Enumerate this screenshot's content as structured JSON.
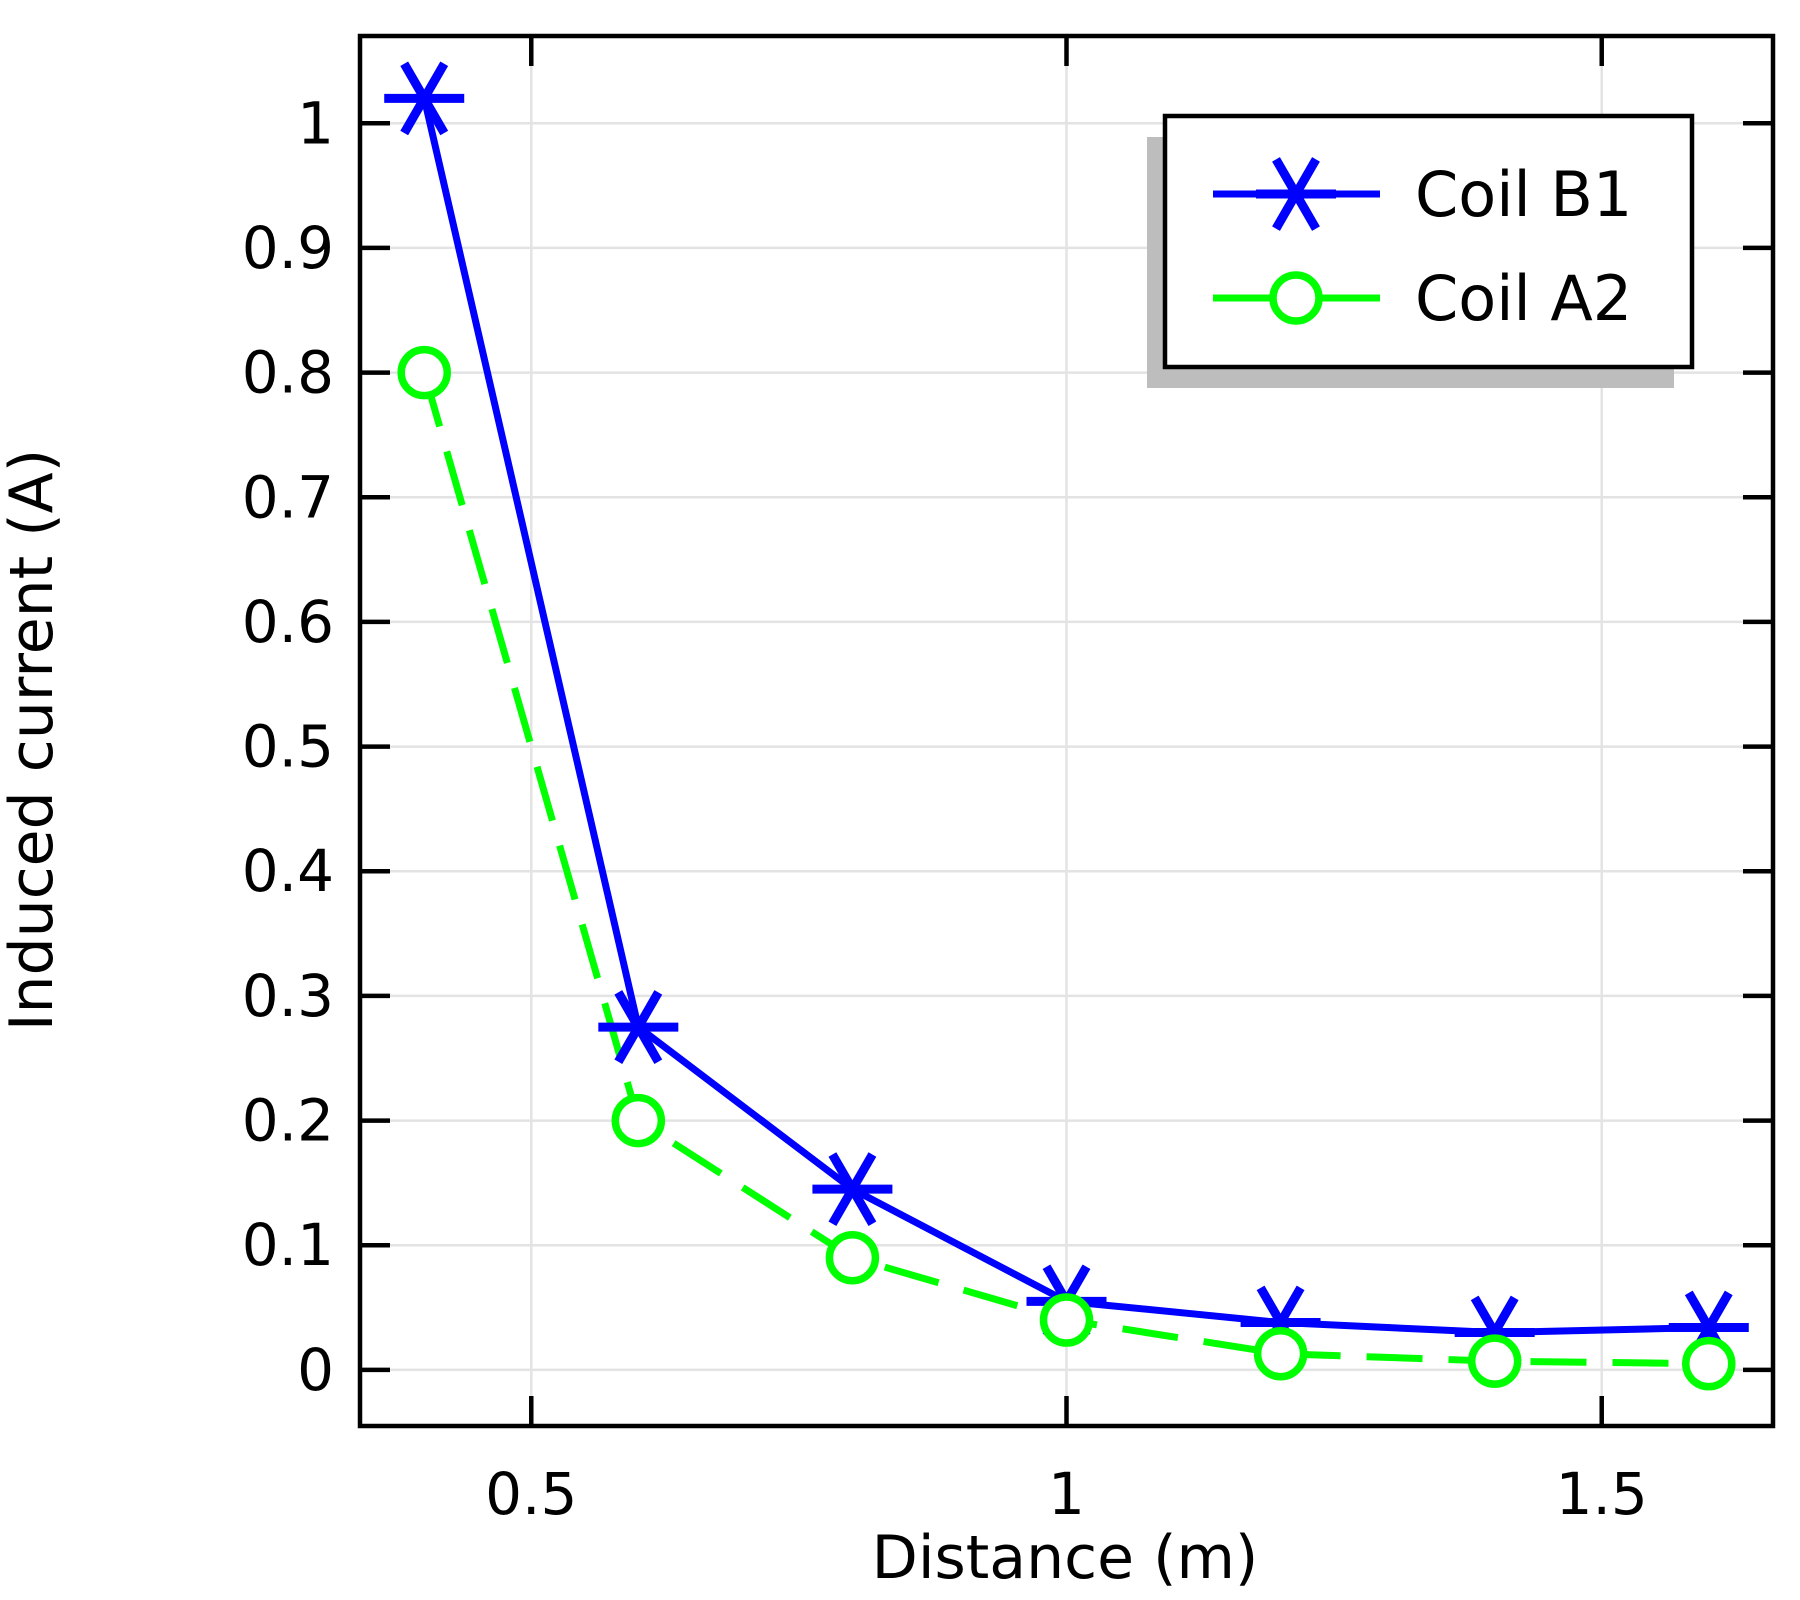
{
  "chart_data": {
    "type": "line",
    "title": "",
    "xlabel": "Distance (m)",
    "ylabel": "Induced current (A)",
    "xlim": [
      0.34,
      1.66
    ],
    "ylim": [
      -0.045,
      1.07
    ],
    "xticks": [
      0.5,
      1,
      1.5
    ],
    "xtick_labels": [
      "0.5",
      "1",
      "1.5"
    ],
    "yticks": [
      0,
      0.1,
      0.2,
      0.3,
      0.4,
      0.5,
      0.6,
      0.7,
      0.8,
      0.9,
      1
    ],
    "ytick_labels": [
      "0",
      "0.1",
      "0.2",
      "0.3",
      "0.4",
      "0.5",
      "0.6",
      "0.7",
      "0.8",
      "0.9",
      "1"
    ],
    "grid": true,
    "legend_position": "top-right",
    "x": [
      0.4,
      0.6,
      0.8,
      1.0,
      1.2,
      1.4,
      1.6
    ],
    "series": [
      {
        "name": "Coil B1",
        "values": [
          1.02,
          0.275,
          0.145,
          0.055,
          0.038,
          0.03,
          0.034
        ],
        "color": "#0000ff",
        "marker": "asterisk",
        "line_style": "solid"
      },
      {
        "name": "Coil A2",
        "values": [
          0.8,
          0.2,
          0.09,
          0.04,
          0.013,
          0.007,
          0.005
        ],
        "color": "#00ff00",
        "marker": "circle",
        "line_style": "dashed"
      }
    ]
  }
}
